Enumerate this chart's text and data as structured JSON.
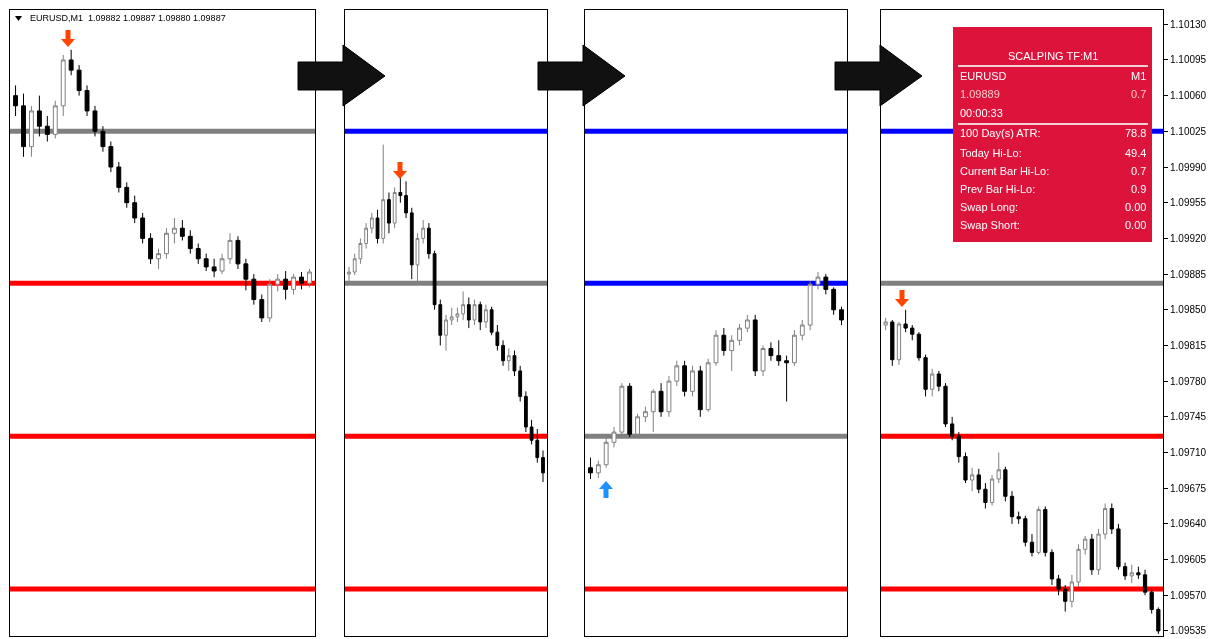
{
  "chart_data": [
    {
      "type": "candlestick",
      "title": "EURUSD,M1  1.09882 1.09887 1.09880 1.09887",
      "tick_labels": false,
      "ylim": [
        1.0953,
        1.10144
      ],
      "categories": [
        null,
        null,
        null,
        null,
        null,
        null,
        null,
        null,
        null,
        null,
        null,
        null,
        null,
        null,
        null,
        null,
        null,
        null,
        null,
        null,
        null,
        null,
        null,
        null,
        null,
        null,
        null,
        null,
        null,
        null,
        null,
        null,
        null,
        null,
        null,
        null,
        null,
        null
      ],
      "ohlc": [
        [
          1.1006,
          1.1007,
          1.1004,
          1.1005
        ],
        [
          1.1005,
          1.10062,
          1.1,
          1.1001
        ],
        [
          1.1001,
          1.1005,
          1.1,
          1.10045
        ],
        [
          1.10045,
          1.1006,
          1.1002,
          1.1003
        ],
        [
          1.1003,
          1.1004,
          1.10015,
          1.10022
        ],
        [
          1.10022,
          1.10055,
          1.10018,
          1.1005
        ],
        [
          1.1005,
          1.101,
          1.1004,
          1.10095
        ],
        [
          1.10095,
          1.10105,
          1.1008,
          1.10085
        ],
        [
          1.10085,
          1.1009,
          1.1006,
          1.10065
        ],
        [
          1.10065,
          1.1007,
          1.1004,
          1.10045
        ],
        [
          1.10045,
          1.1005,
          1.1002,
          1.10025
        ],
        [
          1.10025,
          1.1003,
          1.10005,
          1.1001
        ],
        [
          1.1001,
          1.10015,
          1.09985,
          1.0999
        ],
        [
          1.0999,
          1.09995,
          1.09965,
          1.0997
        ],
        [
          1.0997,
          1.09975,
          1.0995,
          1.09955
        ],
        [
          1.09955,
          1.09962,
          1.09935,
          1.0994
        ],
        [
          1.0994,
          1.09945,
          1.09915,
          1.0992
        ],
        [
          1.0992,
          1.09925,
          1.09895,
          1.099
        ],
        [
          1.099,
          1.0991,
          1.0989,
          1.09905
        ],
        [
          1.09905,
          1.0993,
          1.099,
          1.09925
        ],
        [
          1.09925,
          1.0994,
          1.09915,
          1.0993
        ],
        [
          1.0993,
          1.09938,
          1.09918,
          1.09922
        ],
        [
          1.09922,
          1.09928,
          1.09905,
          1.0991
        ],
        [
          1.0991,
          1.09915,
          1.09895,
          1.099
        ],
        [
          1.099,
          1.09905,
          1.09888,
          1.09892
        ],
        [
          1.09892,
          1.099,
          1.09882,
          1.09888
        ],
        [
          1.09888,
          1.09905,
          1.09885,
          1.099
        ],
        [
          1.099,
          1.09925,
          1.09895,
          1.09918
        ],
        [
          1.09918,
          1.09922,
          1.0989,
          1.09895
        ],
        [
          1.09895,
          1.099,
          1.09869,
          1.0988
        ],
        [
          1.0988,
          1.09885,
          1.09855,
          1.0986
        ],
        [
          1.0986,
          1.09865,
          1.09838,
          1.09842
        ],
        [
          1.09842,
          1.0988,
          1.09838,
          1.09875
        ],
        [
          1.09875,
          1.09885,
          1.09868,
          1.0988
        ],
        [
          1.0988,
          1.09888,
          1.0986,
          1.0987
        ],
        [
          1.0987,
          1.09885,
          1.09865,
          1.09882
        ],
        [
          1.09882,
          1.09887,
          1.0987,
          1.09876
        ],
        [
          1.09876,
          1.0989,
          1.09872,
          1.09887
        ]
      ],
      "ref_lines": [
        {
          "axis": "y",
          "value": 1.10025,
          "color": "#808080"
        },
        {
          "axis": "y",
          "value": 1.09876,
          "color": "#ff0000"
        },
        {
          "axis": "y",
          "value": 1.09726,
          "color": "#ff0000"
        },
        {
          "axis": "y",
          "value": 1.09576,
          "color": "#ff0000"
        }
      ]
    },
    {
      "type": "candlestick",
      "tick_labels": false,
      "ylim": [
        1.0953,
        1.10144
      ],
      "categories": [
        null,
        null,
        null,
        null,
        null,
        null,
        null,
        null,
        null,
        null,
        null,
        null,
        null,
        null,
        null,
        null,
        null,
        null,
        null,
        null,
        null,
        null,
        null,
        null,
        null,
        null,
        null,
        null,
        null,
        null,
        null,
        null,
        null,
        null,
        null
      ],
      "ohlc": [
        [
          1.09885,
          1.09892,
          1.09878,
          1.09887
        ],
        [
          1.09887,
          1.09905,
          1.09884,
          1.099
        ],
        [
          1.099,
          1.0992,
          1.09895,
          1.09915
        ],
        [
          1.09915,
          1.09935,
          1.0991,
          1.0993
        ],
        [
          1.0993,
          1.09945,
          1.09925,
          1.0994
        ],
        [
          1.0994,
          1.09948,
          1.09915,
          1.0992
        ],
        [
          1.0992,
          1.10012,
          1.09915,
          1.09958
        ],
        [
          1.09958,
          1.09965,
          1.09925,
          1.09935
        ],
        [
          1.09935,
          1.0997,
          1.0993,
          1.09965
        ],
        [
          1.09965,
          1.0998,
          1.09955,
          1.09962
        ],
        [
          1.09962,
          1.09976,
          1.0994,
          1.09945
        ],
        [
          1.09945,
          1.0995,
          1.0988,
          1.09894
        ],
        [
          1.09894,
          1.09925,
          1.09878,
          1.0992
        ],
        [
          1.0992,
          1.09938,
          1.09915,
          1.0993
        ],
        [
          1.0993,
          1.09935,
          1.099,
          1.09905
        ],
        [
          1.09905,
          1.09908,
          1.0985,
          1.09855
        ],
        [
          1.09855,
          1.0986,
          1.09815,
          1.09825
        ],
        [
          1.09825,
          1.09845,
          1.0981,
          1.0984
        ],
        [
          1.0984,
          1.09852,
          1.09835,
          1.09843
        ],
        [
          1.09843,
          1.09852,
          1.09838,
          1.09846
        ],
        [
          1.09846,
          1.09868,
          1.0984,
          1.09855
        ],
        [
          1.09855,
          1.09862,
          1.09832,
          1.0984
        ],
        [
          1.0984,
          1.0986,
          1.09835,
          1.09855
        ],
        [
          1.09855,
          1.09858,
          1.0983,
          1.09838
        ],
        [
          1.09838,
          1.09855,
          1.09832,
          1.0985
        ],
        [
          1.0985,
          1.09853,
          1.09825,
          1.09828
        ],
        [
          1.09828,
          1.09835,
          1.0981,
          1.09815
        ],
        [
          1.09815,
          1.0982,
          1.09795,
          1.098
        ],
        [
          1.098,
          1.09812,
          1.0979,
          1.09805
        ],
        [
          1.09805,
          1.0981,
          1.09785,
          1.0979
        ],
        [
          1.0979,
          1.09795,
          1.0976,
          1.09765
        ],
        [
          1.09765,
          1.0977,
          1.0973,
          1.09735
        ],
        [
          1.09735,
          1.09742,
          1.09718,
          1.09722
        ],
        [
          1.09722,
          1.09733,
          1.097,
          1.09705
        ],
        [
          1.09705,
          1.09712,
          1.09681,
          1.0969
        ]
      ],
      "ref_lines": [
        {
          "axis": "y",
          "value": 1.10025,
          "color": "#0000ff"
        },
        {
          "axis": "y",
          "value": 1.09876,
          "color": "#808080"
        },
        {
          "axis": "y",
          "value": 1.09726,
          "color": "#ff0000"
        },
        {
          "axis": "y",
          "value": 1.09576,
          "color": "#ff0000"
        }
      ]
    },
    {
      "type": "candlestick",
      "tick_labels": false,
      "ylim": [
        1.0953,
        1.10144
      ],
      "categories": [
        null,
        null,
        null,
        null,
        null,
        null,
        null,
        null,
        null,
        null,
        null,
        null,
        null,
        null,
        null,
        null,
        null,
        null,
        null,
        null,
        null,
        null,
        null,
        null,
        null,
        null,
        null,
        null,
        null,
        null,
        null,
        null,
        null
      ],
      "ohlc": [
        [
          1.09695,
          1.09705,
          1.09684,
          1.0969
        ],
        [
          1.0969,
          1.09702,
          1.09685,
          1.09698
        ],
        [
          1.09698,
          1.09725,
          1.09695,
          1.0972
        ],
        [
          1.0972,
          1.09735,
          1.09715,
          1.0973
        ],
        [
          1.0973,
          1.09778,
          1.09725,
          1.09775
        ],
        [
          1.09775,
          1.09778,
          1.09725,
          1.09728
        ],
        [
          1.09728,
          1.09748,
          1.09725,
          1.09745
        ],
        [
          1.09745,
          1.09755,
          1.0974,
          1.0975
        ],
        [
          1.0975,
          1.09772,
          1.0973,
          1.0977
        ],
        [
          1.0977,
          1.09778,
          1.09745,
          1.0975
        ],
        [
          1.0975,
          1.09785,
          1.09745,
          1.0978
        ],
        [
          1.0978,
          1.098,
          1.09775,
          1.09795
        ],
        [
          1.09795,
          1.098,
          1.09765,
          1.0977
        ],
        [
          1.0977,
          1.09795,
          1.09765,
          1.0979
        ],
        [
          1.0979,
          1.09795,
          1.09745,
          1.09752
        ],
        [
          1.09752,
          1.09802,
          1.0975,
          1.09798
        ],
        [
          1.09798,
          1.0983,
          1.09795,
          1.09825
        ],
        [
          1.09825,
          1.09832,
          1.09805,
          1.0981
        ],
        [
          1.0981,
          1.09825,
          1.0979,
          1.0982
        ],
        [
          1.0982,
          1.09836,
          1.09815,
          1.09832
        ],
        [
          1.09832,
          1.09845,
          1.09828,
          1.0984
        ],
        [
          1.0984,
          1.09845,
          1.09785,
          1.0979
        ],
        [
          1.0979,
          1.09815,
          1.09785,
          1.09812
        ],
        [
          1.09812,
          1.09818,
          1.098,
          1.09805
        ],
        [
          1.09805,
          1.0982,
          1.09795,
          1.098
        ],
        [
          1.098,
          1.09805,
          1.0976,
          1.09798
        ],
        [
          1.09798,
          1.0983,
          1.09795,
          1.09825
        ],
        [
          1.09825,
          1.0984,
          1.0982,
          1.09835
        ],
        [
          1.09835,
          1.09878,
          1.0983,
          1.09875
        ],
        [
          1.09875,
          1.09887,
          1.0987,
          1.09882
        ],
        [
          1.09882,
          1.09885,
          1.09865,
          1.0987
        ],
        [
          1.0987,
          1.09872,
          1.09845,
          1.0985
        ],
        [
          1.0985,
          1.09853,
          1.09835,
          1.0984
        ]
      ],
      "ref_lines": [
        {
          "axis": "y",
          "value": 1.10025,
          "color": "#0000ff"
        },
        {
          "axis": "y",
          "value": 1.09876,
          "color": "#0000ff"
        },
        {
          "axis": "y",
          "value": 1.09726,
          "color": "#808080"
        },
        {
          "axis": "y",
          "value": 1.09576,
          "color": "#ff0000"
        }
      ]
    },
    {
      "type": "candlestick",
      "tick_labels": "y",
      "ylim": [
        1.0953,
        1.10144
      ],
      "yticks": [
        {
          "value": 1.1013,
          "label": "1.10130"
        },
        {
          "value": 1.10095,
          "label": "1.10095"
        },
        {
          "value": 1.1006,
          "label": "1.10060"
        },
        {
          "value": 1.10025,
          "label": "1.10025"
        },
        {
          "value": 1.0999,
          "label": "1.09990"
        },
        {
          "value": 1.09955,
          "label": "1.09955"
        },
        {
          "value": 1.0992,
          "label": "1.09920"
        },
        {
          "value": 1.09885,
          "label": "1.09885"
        },
        {
          "value": 1.0985,
          "label": "1.09850"
        },
        {
          "value": 1.09815,
          "label": "1.09815"
        },
        {
          "value": 1.0978,
          "label": "1.09780"
        },
        {
          "value": 1.09745,
          "label": "1.09745"
        },
        {
          "value": 1.0971,
          "label": "1.09710"
        },
        {
          "value": 1.09675,
          "label": "1.09675"
        },
        {
          "value": 1.0964,
          "label": "1.09640"
        },
        {
          "value": 1.09605,
          "label": "1.09605"
        },
        {
          "value": 1.0957,
          "label": "1.09570"
        },
        {
          "value": 1.09535,
          "label": "1.09535"
        }
      ],
      "categories": [
        null,
        null,
        null,
        null,
        null,
        null,
        null,
        null,
        null,
        null,
        null,
        null,
        null,
        null,
        null,
        null,
        null,
        null,
        null,
        null,
        null,
        null,
        null,
        null,
        null,
        null,
        null,
        null,
        null,
        null,
        null,
        null,
        null,
        null,
        null,
        null,
        null,
        null,
        null,
        null,
        null,
        null
      ],
      "ohlc": [
        [
          1.09835,
          1.09842,
          1.0983,
          1.09838
        ],
        [
          1.09838,
          1.0984,
          1.09795,
          1.09801
        ],
        [
          1.09801,
          1.09838,
          1.09796,
          1.09836
        ],
        [
          1.09836,
          1.0985,
          1.09828,
          1.09832
        ],
        [
          1.09832,
          1.09835,
          1.0982,
          1.09826
        ],
        [
          1.09826,
          1.09828,
          1.098,
          1.09803
        ],
        [
          1.09803,
          1.09806,
          1.09765,
          1.09772
        ],
        [
          1.09772,
          1.09792,
          1.09765,
          1.09787
        ],
        [
          1.09787,
          1.0979,
          1.0977,
          1.09775
        ],
        [
          1.09775,
          1.09778,
          1.09735,
          1.09738
        ],
        [
          1.09738,
          1.09745,
          1.09722,
          1.09726
        ],
        [
          1.09726,
          1.0973,
          1.097,
          1.09706
        ],
        [
          1.09706,
          1.0971,
          1.0968,
          1.09683
        ],
        [
          1.09683,
          1.09695,
          1.09672,
          1.09688
        ],
        [
          1.09688,
          1.09694,
          1.0967,
          1.09674
        ],
        [
          1.09674,
          1.0968,
          1.09655,
          1.09661
        ],
        [
          1.09661,
          1.09688,
          1.09658,
          1.09684
        ],
        [
          1.09684,
          1.0971,
          1.0968,
          1.09693
        ],
        [
          1.09693,
          1.09696,
          1.09662,
          1.09667
        ],
        [
          1.09667,
          1.09672,
          1.0964,
          1.09647
        ],
        [
          1.09647,
          1.09652,
          1.0964,
          1.09645
        ],
        [
          1.09645,
          1.09648,
          1.09618,
          1.09622
        ],
        [
          1.09622,
          1.0963,
          1.09608,
          1.09612
        ],
        [
          1.09612,
          1.09657,
          1.0961,
          1.09654
        ],
        [
          1.09654,
          1.09657,
          1.09608,
          1.09612
        ],
        [
          1.09612,
          1.09615,
          1.0958,
          1.09586
        ],
        [
          1.09586,
          1.0959,
          1.0957,
          1.09576
        ],
        [
          1.09576,
          1.0958,
          1.09554,
          1.09564
        ],
        [
          1.09564,
          1.0959,
          1.09558,
          1.09583
        ],
        [
          1.09583,
          1.0962,
          1.09578,
          1.09615
        ],
        [
          1.09615,
          1.09628,
          1.0961,
          1.09625
        ],
        [
          1.09625,
          1.0963,
          1.0959,
          1.09595
        ],
        [
          1.09595,
          1.09635,
          1.0959,
          1.0963
        ],
        [
          1.0963,
          1.0966,
          1.09625,
          1.09655
        ],
        [
          1.09655,
          1.0966,
          1.0963,
          1.09635
        ],
        [
          1.09635,
          1.0964,
          1.09595,
          1.09598
        ],
        [
          1.09598,
          1.09602,
          1.09585,
          1.09589
        ],
        [
          1.09589,
          1.096,
          1.09582,
          1.09592
        ],
        [
          1.09592,
          1.09598,
          1.09586,
          1.0959
        ],
        [
          1.0959,
          1.09595,
          1.0957,
          1.09573
        ],
        [
          1.09573,
          1.09576,
          1.09552,
          1.09556
        ],
        [
          1.09556,
          1.09558,
          1.09532,
          1.09535
        ]
      ],
      "ref_lines": [
        {
          "axis": "y",
          "value": 1.10025,
          "color": "#0000ff"
        },
        {
          "axis": "y",
          "value": 1.09876,
          "color": "#808080"
        },
        {
          "axis": "y",
          "value": 1.09726,
          "color": "#ff0000"
        },
        {
          "axis": "y",
          "value": 1.09576,
          "color": "#ff0000"
        }
      ]
    },
    {
      "type": "other",
      "title": "SCALPING TF:M1",
      "annotations": [
        "EURUSD",
        "M1",
        "1.09889",
        "0.7",
        "00:00:33",
        "100 Day(s) ATR:",
        "78.8",
        "Today Hi-Lo:",
        "49.4",
        "Current Bar Hi-Lo:",
        "0.7",
        "Prev Bar Hi-Lo:",
        "0.9",
        "Swap Long:",
        "0.00",
        "Swap Short:",
        "0.00"
      ]
    }
  ]
}
